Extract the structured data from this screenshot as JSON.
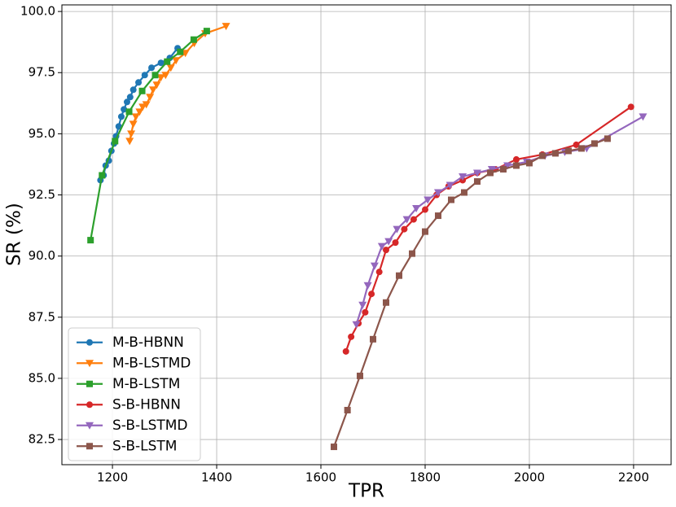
{
  "chart_data": {
    "type": "line",
    "xlabel": "TPR",
    "ylabel": "SR (%)",
    "xlim": [
      1103,
      2272
    ],
    "ylim": [
      81.47,
      100.27
    ],
    "xticks": [
      1200,
      1400,
      1600,
      1800,
      2000,
      2200
    ],
    "yticks": [
      82.5,
      {
        "value": 85,
        "label": "85.0"
      },
      87.5,
      {
        "value": 90,
        "label": "90.0"
      },
      92.5,
      {
        "value": 95,
        "label": "95.0"
      },
      97.5,
      {
        "value": 100,
        "label": "100.0"
      }
    ],
    "grid": true,
    "legend": "lower left",
    "series": [
      {
        "name": "M-B-HBNN",
        "color": "#1f77b4",
        "marker": "circle",
        "x": [
          1177,
          1183,
          1187,
          1193,
          1198,
          1203,
          1207,
          1212,
          1217,
          1222,
          1228,
          1234,
          1240,
          1250,
          1262,
          1275,
          1293,
          1310,
          1325
        ],
        "values": [
          93.1,
          93.3,
          93.7,
          93.9,
          94.3,
          94.6,
          94.9,
          95.3,
          95.7,
          96.0,
          96.3,
          96.5,
          96.8,
          97.1,
          97.4,
          97.7,
          97.9,
          98.1,
          98.5
        ]
      },
      {
        "name": "M-B-LSTMD",
        "color": "#ff7f0e",
        "marker": "triangle",
        "x": [
          1233,
          1236,
          1240,
          1245,
          1252,
          1258,
          1265,
          1272,
          1278,
          1285,
          1293,
          1302,
          1312,
          1322,
          1340,
          1357,
          1378,
          1418
        ],
        "values": [
          94.7,
          95.0,
          95.4,
          95.7,
          95.9,
          96.1,
          96.2,
          96.5,
          96.8,
          97.0,
          97.3,
          97.4,
          97.7,
          98.0,
          98.3,
          98.7,
          99.1,
          99.4
        ]
      },
      {
        "name": "M-B-LSTM",
        "color": "#2ca02c",
        "marker": "square",
        "x": [
          1158,
          1180,
          1205,
          1232,
          1257,
          1282,
          1305,
          1330,
          1356,
          1381
        ],
        "values": [
          90.65,
          93.3,
          94.7,
          95.9,
          96.75,
          97.4,
          97.95,
          98.35,
          98.85,
          99.2
        ]
      },
      {
        "name": "S-B-HBNN",
        "color": "#d62728",
        "marker": "circle",
        "x": [
          1648,
          1658,
          1672,
          1685,
          1697,
          1712,
          1725,
          1743,
          1760,
          1778,
          1800,
          1822,
          1845,
          1872,
          1900,
          1935,
          1975,
          2025,
          2090,
          2195
        ],
        "values": [
          86.1,
          86.7,
          87.25,
          87.7,
          88.45,
          89.35,
          90.25,
          90.55,
          91.1,
          91.5,
          91.9,
          92.5,
          92.85,
          93.1,
          93.4,
          93.55,
          93.95,
          94.15,
          94.55,
          96.1
        ]
      },
      {
        "name": "S-B-LSTMD",
        "color": "#9467bd",
        "marker": "triangle",
        "x": [
          1668,
          1680,
          1690,
          1703,
          1717,
          1730,
          1746,
          1765,
          1783,
          1805,
          1825,
          1848,
          1872,
          1900,
          1928,
          1958,
          1995,
          2030,
          2068,
          2110,
          2218
        ],
        "values": [
          87.2,
          88.0,
          88.8,
          89.6,
          90.4,
          90.6,
          91.1,
          91.5,
          91.95,
          92.3,
          92.6,
          92.9,
          93.25,
          93.4,
          93.55,
          93.7,
          93.85,
          94.1,
          94.25,
          94.4,
          95.7
        ]
      },
      {
        "name": "S-B-LSTM",
        "color": "#8c564b",
        "marker": "square",
        "x": [
          1625,
          1651,
          1675,
          1700,
          1725,
          1750,
          1775,
          1800,
          1825,
          1850,
          1875,
          1900,
          1925,
          1950,
          1975,
          2000,
          2025,
          2050,
          2075,
          2100,
          2125,
          2150
        ],
        "values": [
          82.2,
          83.7,
          85.1,
          86.6,
          88.1,
          89.2,
          90.1,
          91.0,
          91.65,
          92.3,
          92.6,
          93.05,
          93.4,
          93.55,
          93.7,
          93.8,
          94.1,
          94.2,
          94.3,
          94.4,
          94.6,
          94.8
        ]
      }
    ]
  }
}
